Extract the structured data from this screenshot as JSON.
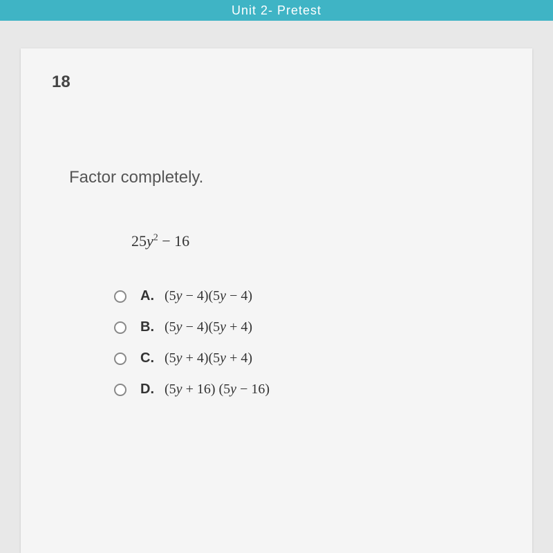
{
  "header": {
    "title": "Unit 2- Pretest"
  },
  "question": {
    "number": "18",
    "prompt": "Factor completely.",
    "expression_a": "25",
    "expression_var": "y",
    "expression_exp": "2",
    "expression_b": " − 16"
  },
  "options": [
    {
      "letter": "A.",
      "text_parts": [
        "(5",
        "y",
        " − 4)(5",
        "y",
        " −  4)"
      ]
    },
    {
      "letter": "B.",
      "text_parts": [
        "(5",
        "y",
        " − 4)(5",
        "y",
        " + 4)"
      ]
    },
    {
      "letter": "C.",
      "text_parts": [
        "(5",
        "y",
        " + 4)(5",
        "y",
        " + 4)"
      ]
    },
    {
      "letter": "D.",
      "text_parts": [
        "(5",
        "y",
        " + 16) (5",
        "y",
        " − 16)"
      ]
    }
  ],
  "styles": {
    "top_bar_bg": "#3fb4c5",
    "card_bg": "#f5f5f5",
    "page_bg": "#e8e8e8",
    "text_color": "#555",
    "number_color": "#444",
    "radio_border": "#888",
    "question_number_fontsize": 24,
    "prompt_fontsize": 24,
    "expression_fontsize": 22,
    "option_fontsize": 20
  }
}
